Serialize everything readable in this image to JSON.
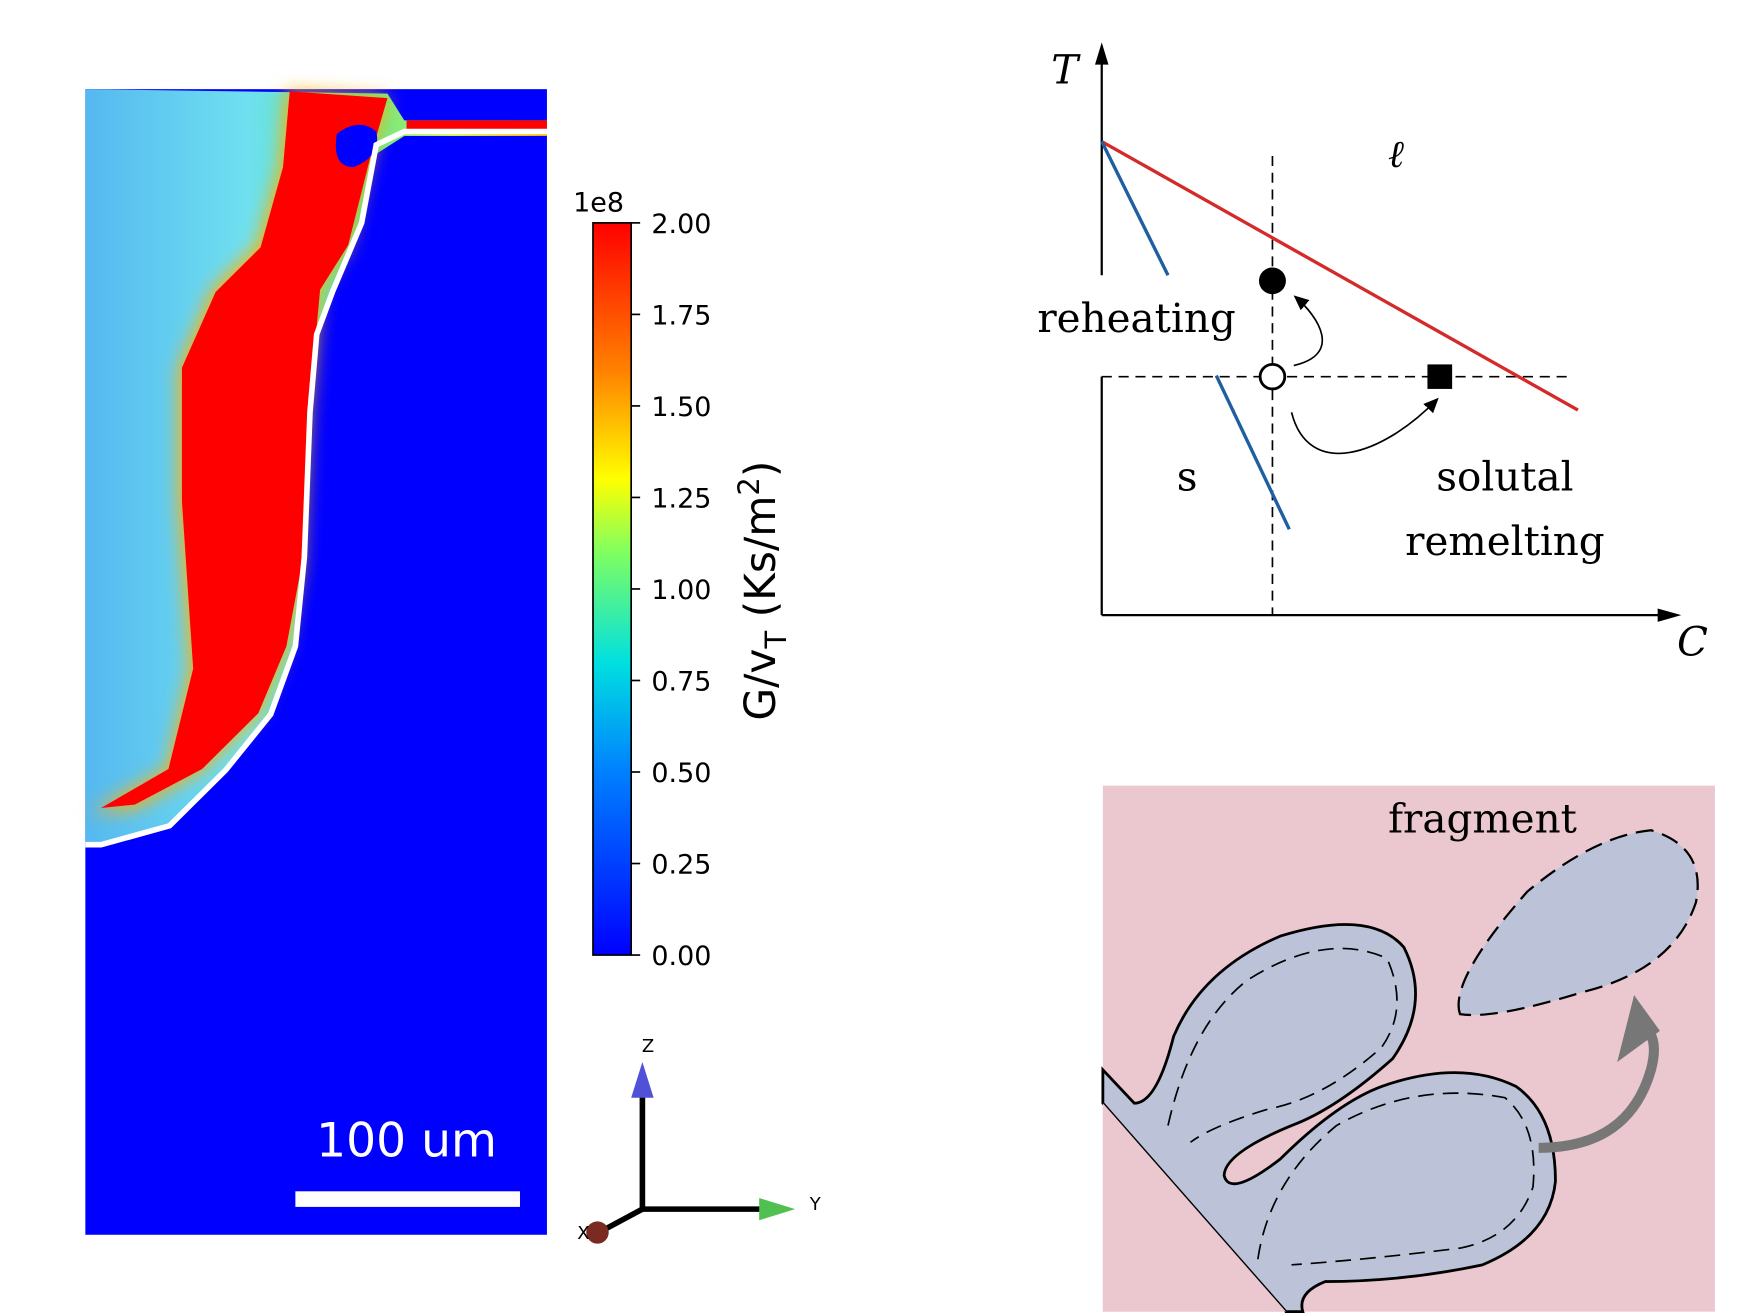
{
  "colorbar": {
    "exponent": "1e8",
    "ticks": [
      "2.00",
      "1.75",
      "1.50",
      "1.25",
      "1.00",
      "0.75",
      "0.50",
      "0.25",
      "0.00"
    ],
    "label": {
      "main": "G/v",
      "sub": "T",
      "unit": " (Ks/m",
      "sup": "2",
      "close": ")"
    }
  },
  "scale_bar": "100 um",
  "triad": {
    "z": "Z",
    "y": "Y",
    "x": "X"
  },
  "phase_diagram": {
    "t_axis": "T",
    "c_axis": "C",
    "liquid": "ℓ",
    "solid": "s",
    "reheating": "reheating",
    "solutal": "solutal",
    "remelting": "remelting"
  },
  "fragment_panel": {
    "label": "fragment"
  }
}
